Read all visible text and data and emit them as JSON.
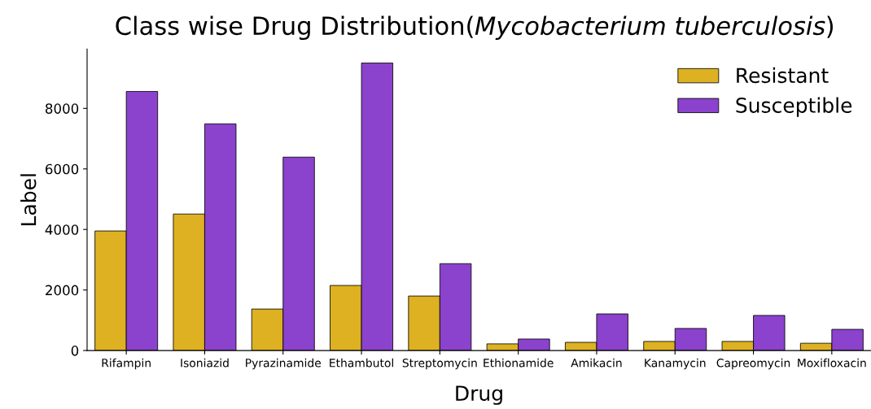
{
  "chart_data": {
    "type": "bar",
    "title": "Class wise Drug Distribution(Mycobacterium tuberculosis)",
    "xlabel": "Drug",
    "ylabel": "Label",
    "categories": [
      "Rifampin",
      "Isoniazid",
      "Pyrazinamide",
      "Ethambutol",
      "Streptomycin",
      "Ethionamide",
      "Amikacin",
      "Kanamycin",
      "Capreomycin",
      "Moxifloxacin"
    ],
    "series": [
      {
        "name": "Resistant",
        "color": "#ddb122",
        "values": [
          3950,
          4510,
          1370,
          2150,
          1800,
          220,
          270,
          300,
          300,
          240
        ]
      },
      {
        "name": "Susceptible",
        "color": "#8b42cc",
        "values": [
          8560,
          7490,
          6390,
          9500,
          2870,
          380,
          1210,
          730,
          1160,
          700
        ]
      }
    ],
    "ylim": [
      0,
      9960
    ],
    "yticks": [
      0,
      2000,
      4000,
      6000,
      8000
    ],
    "grid": false,
    "legend": "top right"
  }
}
